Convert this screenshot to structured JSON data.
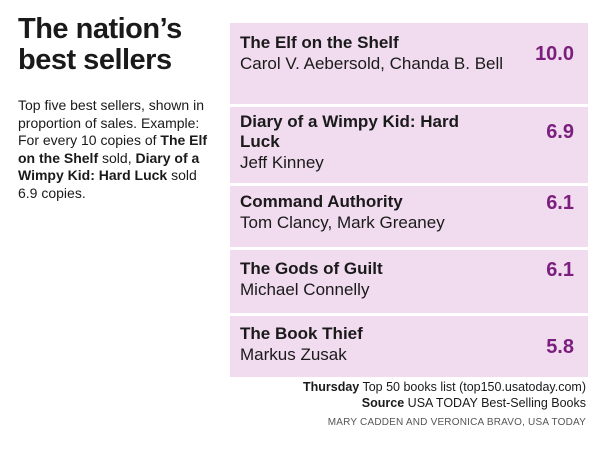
{
  "title": "The nation’s best sellers",
  "description": {
    "part1": "Top five best sellers, shown in proportion of sales. Example: For every 10 copies of ",
    "bold1": "The Elf on the Shelf",
    "part2": " sold, ",
    "bold2": "Diary of a Wimpy Kid: Hard Luck",
    "part3": " sold 6.9 copies."
  },
  "chart_data": {
    "type": "table",
    "columns": [
      "Title",
      "Author",
      "Value"
    ],
    "rows": [
      {
        "title": "The Elf on the Shelf",
        "author": "Carol V. Aebersold, Chanda B. Bell",
        "value": 10.0
      },
      {
        "title": "Diary of a Wimpy Kid: Hard Luck",
        "author": "Jeff Kinney",
        "value": 6.9
      },
      {
        "title": "Command Authority",
        "author": "Tom Clancy, Mark Greaney",
        "value": 6.1
      },
      {
        "title": "The Gods of Guilt",
        "author": "Michael Connelly",
        "value": 6.1
      },
      {
        "title": "The Book Thief",
        "author": "Markus Zusak",
        "value": 5.8
      }
    ]
  },
  "display_values": [
    "10.0",
    "6.9",
    "6.1",
    "6.1",
    "5.8"
  ],
  "footer": {
    "line1_label": "Thursday",
    "line1_text": " Top 50 books list (top150.usatoday.com)",
    "line2_label": "Source",
    "line2_text": " USA TODAY Best-Selling Books",
    "credit": "MARY CADDEN AND VERONICA BRAVO, USA TODAY"
  },
  "colors": {
    "panel_background": "#f1dbef",
    "value_color": "#7a1f7e"
  }
}
